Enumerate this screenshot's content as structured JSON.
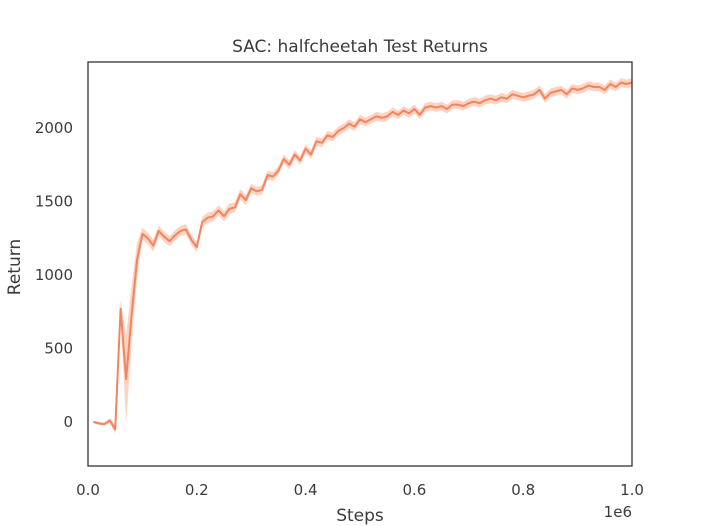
{
  "chart_data": {
    "type": "line",
    "title": "SAC: halfcheetah Test Returns",
    "xlabel": "Steps",
    "ylabel": "Return",
    "x_offset_label": "1e6",
    "xlim": [
      0,
      1.0
    ],
    "ylim": [
      -300,
      2450
    ],
    "xticks": [
      0.0,
      0.2,
      0.4,
      0.6,
      0.8,
      1.0
    ],
    "xtick_labels": [
      "0.0",
      "0.2",
      "0.4",
      "0.6",
      "0.8",
      "1.0"
    ],
    "yticks": [
      0,
      500,
      1000,
      1500,
      2000
    ],
    "ytick_labels": [
      "0",
      "500",
      "1000",
      "1500",
      "2000"
    ],
    "grid": false,
    "colors": {
      "line": "#f4845f",
      "band": "#fbb59a"
    },
    "series": [
      {
        "x": [
          0.01,
          0.02,
          0.03,
          0.04,
          0.05,
          0.06,
          0.07,
          0.08,
          0.09,
          0.1,
          0.11,
          0.12,
          0.13,
          0.14,
          0.15,
          0.16,
          0.17,
          0.18,
          0.19,
          0.2,
          0.21,
          0.22,
          0.23,
          0.24,
          0.25,
          0.26,
          0.27,
          0.28,
          0.29,
          0.3,
          0.31,
          0.32,
          0.33,
          0.34,
          0.35,
          0.36,
          0.37,
          0.38,
          0.39,
          0.4,
          0.41,
          0.42,
          0.43,
          0.44,
          0.45,
          0.46,
          0.47,
          0.48,
          0.49,
          0.5,
          0.51,
          0.52,
          0.53,
          0.54,
          0.55,
          0.56,
          0.57,
          0.58,
          0.59,
          0.6,
          0.61,
          0.62,
          0.63,
          0.64,
          0.65,
          0.66,
          0.67,
          0.68,
          0.69,
          0.7,
          0.71,
          0.72,
          0.73,
          0.74,
          0.75,
          0.76,
          0.77,
          0.78,
          0.79,
          0.8,
          0.81,
          0.82,
          0.83,
          0.84,
          0.85,
          0.86,
          0.87,
          0.88,
          0.89,
          0.9,
          0.91,
          0.92,
          0.93,
          0.94,
          0.95,
          0.96,
          0.97,
          0.98,
          0.99,
          1.0
        ],
        "y": [
          0,
          -10,
          -15,
          10,
          -50,
          770,
          290,
          720,
          1100,
          1280,
          1250,
          1200,
          1300,
          1260,
          1230,
          1270,
          1300,
          1310,
          1240,
          1190,
          1360,
          1390,
          1400,
          1440,
          1400,
          1450,
          1460,
          1550,
          1510,
          1590,
          1570,
          1580,
          1680,
          1670,
          1710,
          1790,
          1750,
          1820,
          1780,
          1860,
          1820,
          1910,
          1900,
          1950,
          1940,
          1980,
          2000,
          2030,
          2010,
          2060,
          2040,
          2060,
          2080,
          2070,
          2080,
          2110,
          2090,
          2120,
          2100,
          2130,
          2090,
          2140,
          2150,
          2140,
          2150,
          2130,
          2160,
          2160,
          2150,
          2170,
          2180,
          2170,
          2190,
          2200,
          2190,
          2210,
          2200,
          2230,
          2220,
          2210,
          2220,
          2230,
          2260,
          2200,
          2240,
          2250,
          2260,
          2230,
          2270,
          2260,
          2270,
          2290,
          2280,
          2280,
          2260,
          2300,
          2280,
          2310,
          2300,
          2310
        ],
        "spread": [
          10,
          10,
          10,
          15,
          30,
          60,
          300,
          200,
          120,
          40,
          40,
          40,
          35,
          35,
          35,
          35,
          35,
          35,
          35,
          35,
          35,
          35,
          35,
          35,
          35,
          35,
          35,
          35,
          35,
          30,
          30,
          30,
          30,
          30,
          30,
          30,
          30,
          30,
          30,
          30,
          30,
          30,
          30,
          30,
          30,
          30,
          30,
          30,
          30,
          30,
          30,
          30,
          30,
          30,
          30,
          30,
          30,
          30,
          30,
          30,
          30,
          30,
          30,
          30,
          30,
          30,
          30,
          30,
          30,
          30,
          30,
          30,
          30,
          30,
          30,
          30,
          30,
          30,
          30,
          30,
          30,
          30,
          30,
          30,
          30,
          30,
          30,
          30,
          30,
          30,
          30,
          30,
          30,
          30,
          30,
          30,
          30,
          30,
          30,
          30
        ]
      }
    ]
  }
}
